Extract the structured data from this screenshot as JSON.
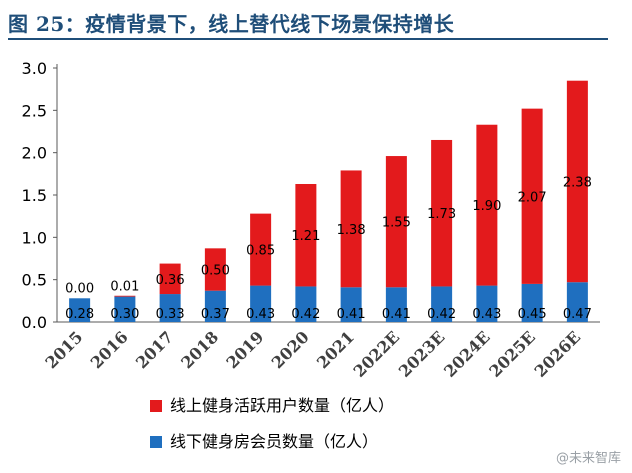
{
  "header": {
    "title": "图 25：疫情背景下，线上替代线下场景保持增长"
  },
  "watermark": "@未来智库",
  "chart_data": {
    "type": "bar",
    "stacked": true,
    "title": "",
    "xlabel": "",
    "ylabel": "",
    "categories": [
      "2015",
      "2016",
      "2017",
      "2018",
      "2019",
      "2020",
      "2021",
      "2022E",
      "2023E",
      "2024E",
      "2025E",
      "2026E"
    ],
    "yticks": [
      "0.0",
      "0.5",
      "1.0",
      "1.5",
      "2.0",
      "2.5",
      "3.0"
    ],
    "ylim": [
      0,
      3.0
    ],
    "grid": false,
    "legend_position": "bottom",
    "series": [
      {
        "name": "线下健身房会员数量（亿人）",
        "color": "#1f6fbf",
        "values": [
          0.28,
          0.3,
          0.33,
          0.37,
          0.43,
          0.42,
          0.41,
          0.41,
          0.42,
          0.43,
          0.45,
          0.47
        ],
        "labels": [
          "0.28",
          "0.30",
          "0.33",
          "0.37",
          "0.43",
          "0.42",
          "0.41",
          "0.41",
          "0.42",
          "0.43",
          "0.45",
          "0.47"
        ]
      },
      {
        "name": "线上健身活跃用户数量（亿人）",
        "color": "#e31a1c",
        "values": [
          0.0,
          0.01,
          0.36,
          0.5,
          0.85,
          1.21,
          1.38,
          1.55,
          1.73,
          1.9,
          2.07,
          2.38
        ],
        "labels": [
          "0.00",
          "0.01",
          "0.36",
          "0.50",
          "0.85",
          "1.21",
          "1.38",
          "1.55",
          "1.73",
          "1.90",
          "2.07",
          "2.38"
        ]
      }
    ]
  }
}
